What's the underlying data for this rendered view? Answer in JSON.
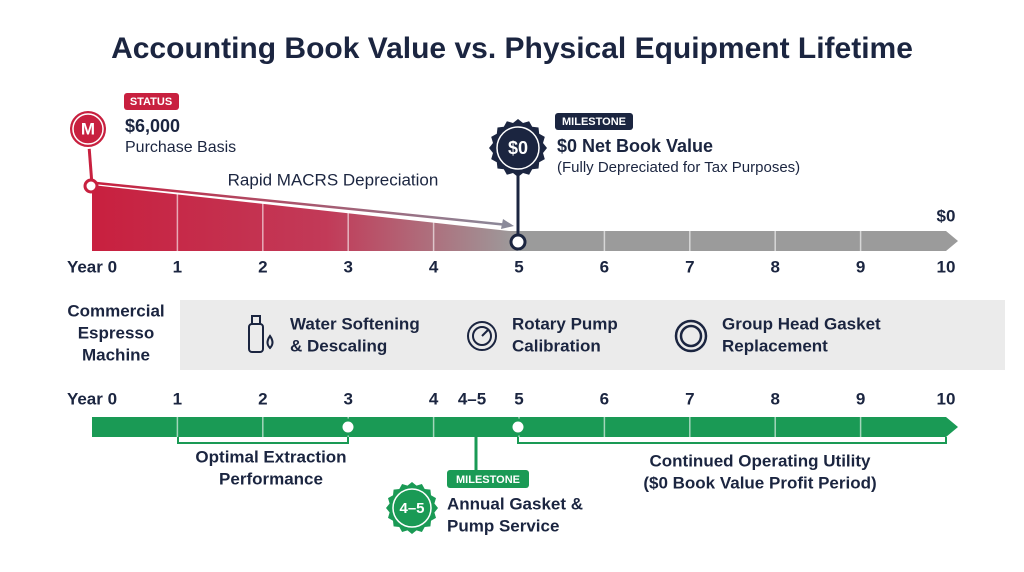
{
  "title": "Accounting Book Value vs. Physical Equipment Lifetime",
  "top_timeline": {
    "years": [
      "Year 0",
      "1",
      "2",
      "3",
      "4",
      "5",
      "6",
      "7",
      "8",
      "9",
      "10"
    ],
    "start": {
      "icon": "M",
      "badge": "STATUS",
      "value": "$6,000",
      "label": "Purchase Basis"
    },
    "arrow_label": "Rapid MACRS Depreciation",
    "milestone": {
      "icon": "$0",
      "badge": "MILESTONE",
      "title": "$0 Net Book Value",
      "subtitle": "(Fully Depreciated for Tax Purposes)"
    },
    "end_value": "$0"
  },
  "equipment": {
    "name_lines": [
      "Commercial",
      "Espresso",
      "Machine"
    ],
    "tasks": [
      {
        "lines": [
          "Water Softening",
          "& Descaling"
        ]
      },
      {
        "lines": [
          "Rotary Pump",
          "Calibration"
        ]
      },
      {
        "lines": [
          "Group Head Gasket",
          "Replacement"
        ]
      }
    ]
  },
  "bottom_timeline": {
    "years": [
      "Year 0",
      "1",
      "2",
      "3",
      "4",
      "4–5",
      "5",
      "6",
      "7",
      "8",
      "9",
      "10"
    ],
    "phases": [
      {
        "lines": [
          "Optimal Extraction",
          "Performance"
        ]
      },
      {
        "lines": [
          "Continued Operating Utility",
          "($0 Book Value Profit Period)"
        ]
      }
    ],
    "milestone": {
      "icon": "4–5",
      "badge": "MILESTONE",
      "lines": [
        "Annual Gasket &",
        "Pump Service"
      ]
    }
  }
}
